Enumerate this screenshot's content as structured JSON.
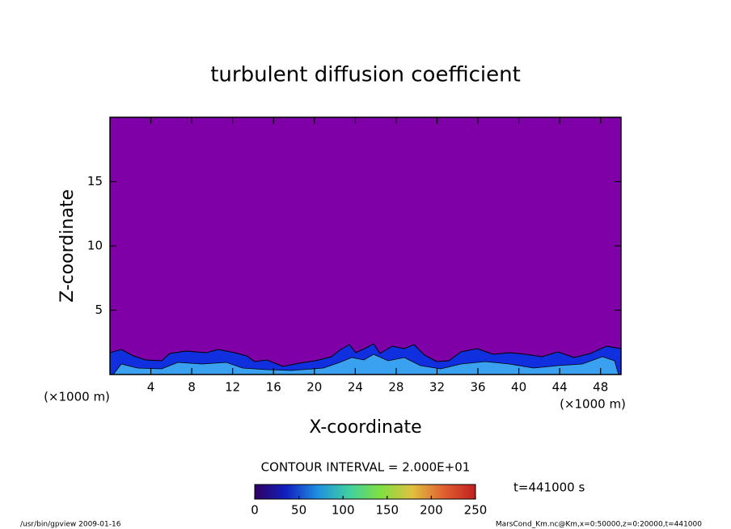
{
  "chart_data": {
    "type": "contour",
    "title": "turbulent diffusion coefficient",
    "x_label": "X-coordinate",
    "y_label": "Z-coordinate",
    "x_unit": "(×1000 m)",
    "y_unit": "(×1000 m)",
    "xlim": [
      0,
      50
    ],
    "xticks": [
      4,
      8,
      12,
      16,
      20,
      24,
      28,
      32,
      36,
      40,
      44,
      48
    ],
    "ylim": [
      0,
      20
    ],
    "yticks": [
      5,
      10,
      15
    ],
    "field_color": "#8000a8",
    "contour_interval_label": "CONTOUR INTERVAL = 2.000E+01",
    "time_label": "t=441000 s",
    "colorbar": {
      "lim": [
        0,
        250
      ],
      "ticks": [
        0,
        50,
        100,
        150,
        200,
        250
      ],
      "colormap": [
        "#300060",
        "#1020c0",
        "#2090e0",
        "#40d0a0",
        "#80e040",
        "#e0c040",
        "#e06030",
        "#c02020"
      ]
    },
    "footer_left": "/usr/bin/gpview  2009-01-16",
    "footer_right": "MarsCond_Km.nc@Km,x=0:50000,z=0:20000,t=441000"
  }
}
